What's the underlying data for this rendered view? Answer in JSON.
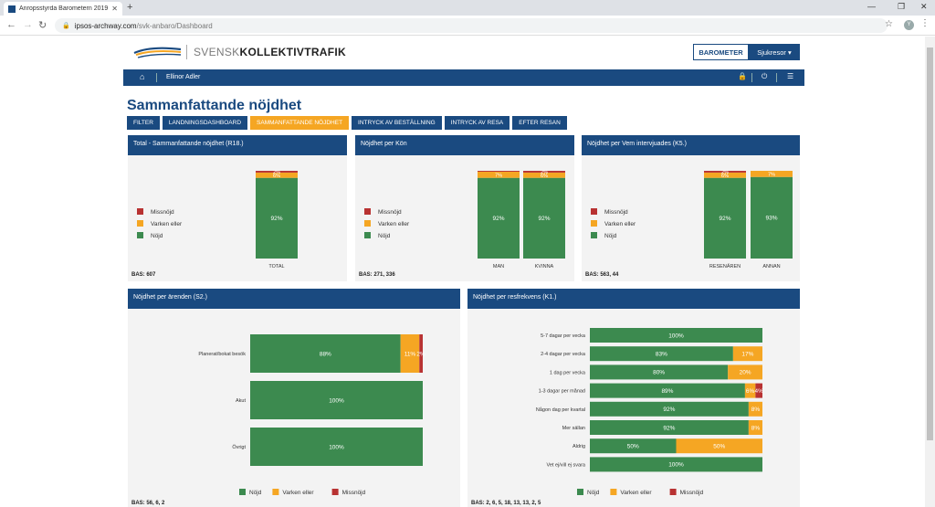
{
  "browser": {
    "tab_title": "Anropsstyrda Barometern 2019",
    "url_host": "ipsos-archway.com",
    "url_path": "/svk-anbaro/Dashboard",
    "profile_initial": "Y"
  },
  "header": {
    "logo_light": "SVENSK",
    "logo_bold": "KOLLEKTIVTRAFIK",
    "barometer_label": "BAROMETER",
    "dropdown_label": "Sjukresor"
  },
  "navbar": {
    "user_name": "Ellinor Adler"
  },
  "page": {
    "title": "Sammanfattande nöjdhet"
  },
  "tabs": [
    {
      "label": "FILTER",
      "active": false
    },
    {
      "label": "LANDNINGSDASHBOARD",
      "active": false
    },
    {
      "label": "SAMMANFATTANDE NÖJDHET",
      "active": true
    },
    {
      "label": "INTRYCK AV BESTÄLLNING",
      "active": false
    },
    {
      "label": "INTRYCK AV RESA",
      "active": false
    },
    {
      "label": "EFTER RESAN",
      "active": false
    }
  ],
  "colors": {
    "nojd": "#3c8a4f",
    "varken": "#f5a623",
    "missnojd": "#b83232",
    "brand": "#1a4a80"
  },
  "chart_data": [
    {
      "type": "bar",
      "title": "Total - Sammanfattande nöjdhet (R18.)",
      "stacked": true,
      "legend": [
        "Missnöjd",
        "Varken eller",
        "Nöjd"
      ],
      "legend_position": "left",
      "categories": [
        "TOTAL"
      ],
      "series": [
        {
          "name": "Nöjd",
          "values": [
            92
          ],
          "labels": [
            "92%"
          ]
        },
        {
          "name": "Varken eller",
          "values": [
            6
          ],
          "labels": [
            "6%"
          ]
        },
        {
          "name": "Missnöjd",
          "values": [
            2
          ],
          "labels": [
            "2%"
          ]
        }
      ],
      "bas": "BAS: 607"
    },
    {
      "type": "bar",
      "title": "Nöjdhet per Kön",
      "stacked": true,
      "legend": [
        "Missnöjd",
        "Varken eller",
        "Nöjd"
      ],
      "legend_position": "left",
      "categories": [
        "MAN",
        "KVINNA"
      ],
      "series": [
        {
          "name": "Nöjd",
          "values": [
            92,
            92
          ],
          "labels": [
            "92%",
            "92%"
          ]
        },
        {
          "name": "Varken eller",
          "values": [
            7,
            6
          ],
          "labels": [
            "7%",
            "6%"
          ]
        },
        {
          "name": "Missnöjd",
          "values": [
            1,
            2
          ],
          "labels": [
            "",
            "2%"
          ]
        }
      ],
      "bas": "BAS: 271, 336"
    },
    {
      "type": "bar",
      "title": "Nöjdhet per Vem intervjuades (K5.)",
      "stacked": true,
      "legend": [
        "Missnöjd",
        "Varken eller",
        "Nöjd"
      ],
      "legend_position": "left",
      "categories": [
        "RESENÄREN",
        "ANNAN"
      ],
      "series": [
        {
          "name": "Nöjd",
          "values": [
            92,
            93
          ],
          "labels": [
            "92%",
            "93%"
          ]
        },
        {
          "name": "Varken eller",
          "values": [
            6,
            7
          ],
          "labels": [
            "6%",
            "7%"
          ]
        },
        {
          "name": "Missnöjd",
          "values": [
            2,
            0
          ],
          "labels": [
            "2%",
            ""
          ]
        }
      ],
      "bas": "BAS: 563, 44"
    },
    {
      "type": "bar",
      "orientation": "horizontal",
      "title": "Nöjdhet per ärenden (S2.)",
      "stacked": true,
      "legend": [
        "Nöjd",
        "Varken eller",
        "Missnöjd"
      ],
      "legend_position": "bottom",
      "categories": [
        "Planerat/bokat besök",
        "Akut",
        "Övrigt"
      ],
      "series": [
        {
          "name": "Nöjd",
          "values": [
            88,
            100,
            100
          ],
          "labels": [
            "88%",
            "100%",
            "100%"
          ]
        },
        {
          "name": "Varken eller",
          "values": [
            11,
            0,
            0
          ],
          "labels": [
            "11%",
            "",
            ""
          ]
        },
        {
          "name": "Missnöjd",
          "values": [
            2,
            0,
            0
          ],
          "labels": [
            "2%",
            "",
            ""
          ]
        }
      ],
      "bas": "BAS: 56, 6, 2"
    },
    {
      "type": "bar",
      "orientation": "horizontal",
      "title": "Nöjdhet per resfrekvens (K1.)",
      "stacked": true,
      "legend": [
        "Nöjd",
        "Varken eller",
        "Missnöjd"
      ],
      "legend_position": "bottom",
      "categories": [
        "5-7 dagar per vecka",
        "2-4 dagar per vecka",
        "1 dag per vecka",
        "1-3 dagar per månad",
        "Någon dag per kvartal",
        "Mer sällan",
        "Aldrig",
        "Vet ej/vill ej svara"
      ],
      "series": [
        {
          "name": "Nöjd",
          "values": [
            100,
            83,
            80,
            89,
            92,
            92,
            50,
            100
          ],
          "labels": [
            "100%",
            "83%",
            "80%",
            "89%",
            "92%",
            "92%",
            "50%",
            "100%"
          ]
        },
        {
          "name": "Varken eller",
          "values": [
            0,
            17,
            20,
            6,
            8,
            8,
            50,
            0
          ],
          "labels": [
            "",
            "17%",
            "20%",
            "6%",
            "8%",
            "8%",
            "50%",
            ""
          ]
        },
        {
          "name": "Missnöjd",
          "values": [
            0,
            0,
            0,
            4,
            0,
            0,
            0,
            0
          ],
          "labels": [
            "",
            "",
            "",
            "4%",
            "",
            "",
            "",
            ""
          ]
        }
      ],
      "bas": "BAS: 2, 6, 5, 18, 13, 13, 2, 5"
    }
  ]
}
